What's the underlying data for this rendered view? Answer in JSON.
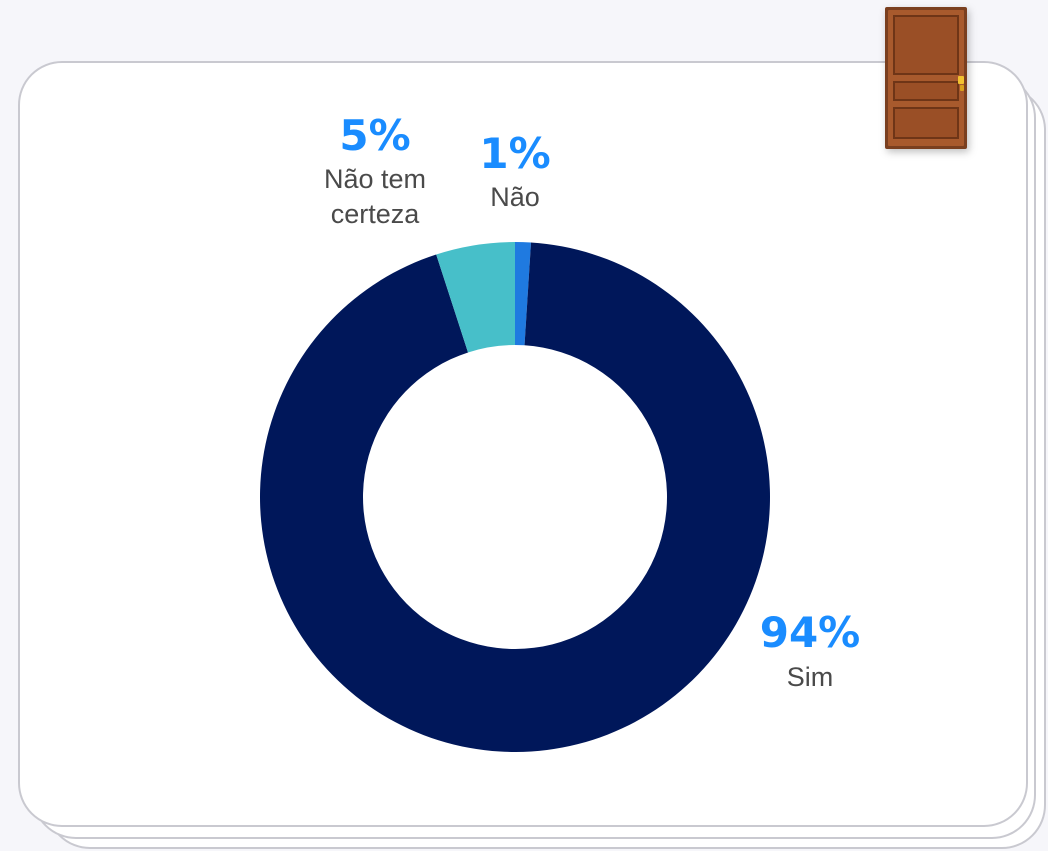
{
  "chart_data": {
    "type": "donut",
    "title": "",
    "slices": [
      {
        "label": "Não",
        "value": 1,
        "value_label": "1%",
        "color": "#1f7ae0"
      },
      {
        "label": "Sim",
        "value": 94,
        "value_label": "94%",
        "color": "#00175a"
      },
      {
        "label": "Não tem certeza",
        "value": 5,
        "value_label": "5%",
        "color": "#47bfc9"
      }
    ],
    "label_color": "#1a8cff",
    "category_text_color": "#4a4a4a"
  },
  "decoration": {
    "door_icon": "door-icon"
  }
}
